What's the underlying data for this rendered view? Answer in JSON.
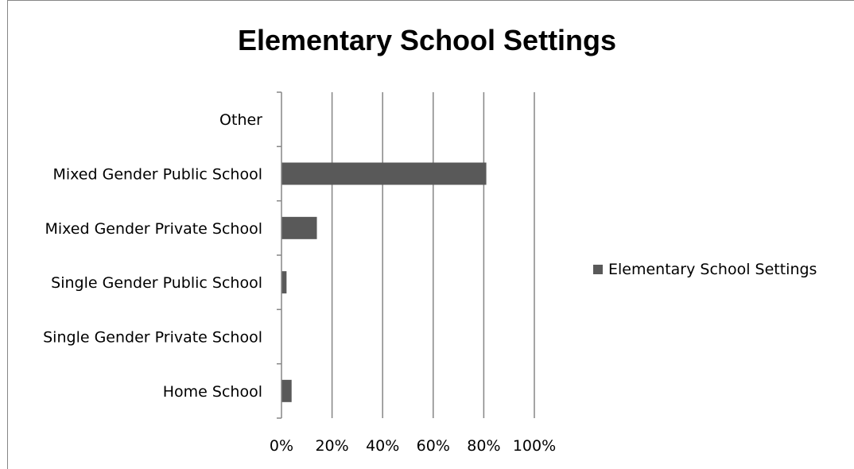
{
  "chart_data": {
    "type": "bar",
    "orientation": "horizontal",
    "title": "Elementary School Settings",
    "categories": [
      "Other",
      "Mixed Gender Public School",
      "Mixed Gender Private School",
      "Single Gender Public School",
      "Single Gender Private School",
      "Home School"
    ],
    "series": [
      {
        "name": "Elementary School Settings",
        "values": [
          0,
          81,
          14,
          2,
          0,
          4
        ],
        "color": "#595959"
      }
    ],
    "xlim": [
      0,
      100
    ],
    "x_ticks": [
      "0%",
      "20%",
      "40%",
      "60%",
      "80%",
      "100%"
    ],
    "value_unit": "%",
    "grid": "vertical",
    "legend_position": "right"
  }
}
